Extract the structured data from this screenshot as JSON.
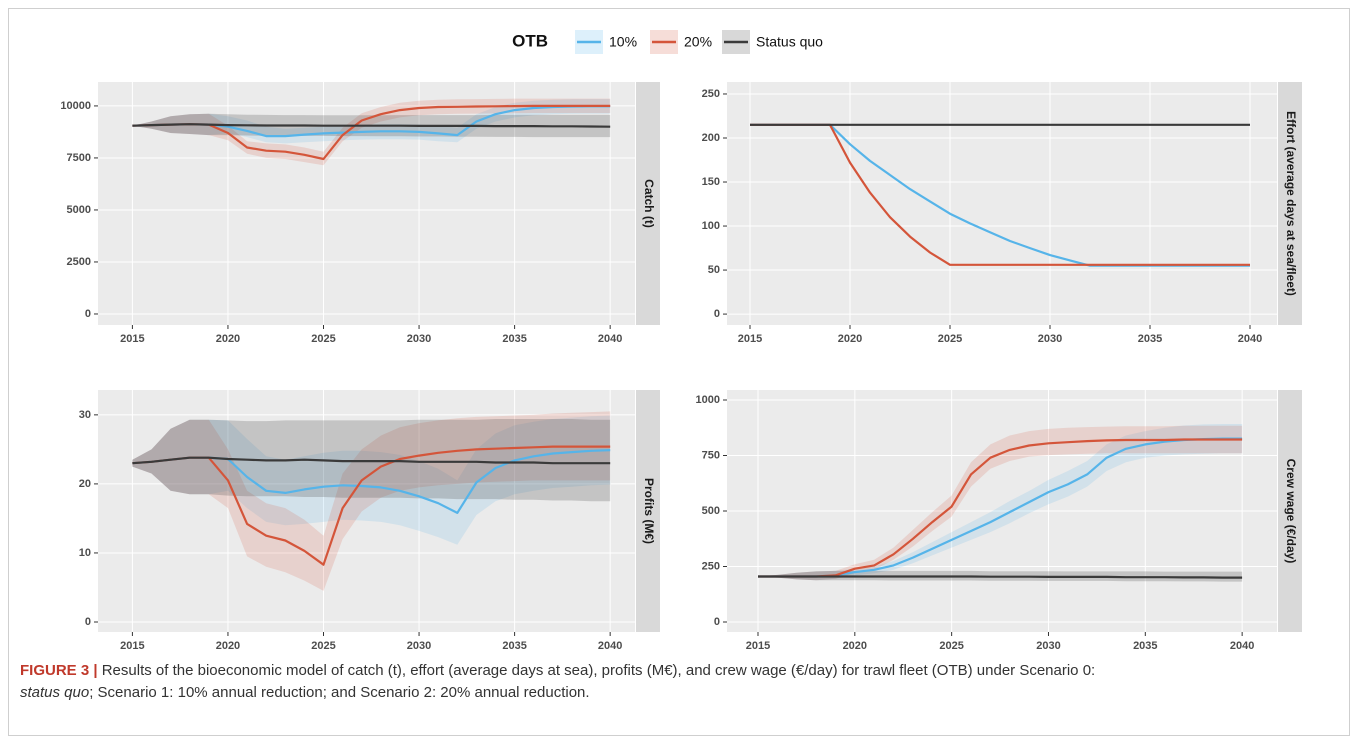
{
  "legend": {
    "title": "OTB",
    "entries": [
      {
        "name": "10%",
        "color": "#56b4e9"
      },
      {
        "name": "20%",
        "color": "#d4553a"
      },
      {
        "name": "Status quo",
        "color": "#3a3a3a"
      }
    ]
  },
  "chart_data": [
    {
      "type": "line",
      "strip": "Catch (t)",
      "x": [
        2015,
        2016,
        2017,
        2018,
        2019,
        2020,
        2021,
        2022,
        2023,
        2024,
        2025,
        2026,
        2027,
        2028,
        2029,
        2030,
        2031,
        2032,
        2033,
        2034,
        2035,
        2036,
        2037,
        2038,
        2039,
        2040
      ],
      "xlim": [
        2013.2,
        2041.3
      ],
      "xticks": [
        2015,
        2020,
        2025,
        2030,
        2035,
        2040
      ],
      "ylim": [
        -530,
        11150
      ],
      "yticks": [
        0,
        2500,
        5000,
        7500,
        10000
      ],
      "grid": true,
      "series": [
        {
          "values": [
            9050,
            9080,
            9100,
            9120,
            9100,
            9000,
            8800,
            8550,
            8550,
            8620,
            8680,
            8720,
            8750,
            8780,
            8780,
            8750,
            8680,
            8600,
            9250,
            9600,
            9800,
            9900,
            9950,
            9970,
            9980,
            9980
          ],
          "lower": [
            9050,
            8900,
            8700,
            8650,
            8600,
            8700,
            8500,
            8250,
            8200,
            8250,
            8300,
            8350,
            8380,
            8400,
            8400,
            8380,
            8300,
            8250,
            8900,
            9250,
            9450,
            9550,
            9600,
            9620,
            9630,
            9630
          ],
          "upper": [
            9050,
            9250,
            9500,
            9600,
            9620,
            9500,
            9300,
            9000,
            8900,
            8950,
            9000,
            9050,
            9080,
            9120,
            9120,
            9100,
            9050,
            8950,
            9600,
            9950,
            10150,
            10250,
            10300,
            10320,
            10330,
            10330
          ]
        },
        {
          "values": [
            9050,
            9080,
            9100,
            9120,
            9100,
            8700,
            8000,
            7850,
            7800,
            7650,
            7450,
            8600,
            9300,
            9600,
            9800,
            9900,
            9950,
            9960,
            9970,
            9980,
            9990,
            10000,
            10000,
            10000,
            10000,
            10000
          ],
          "lower": [
            9050,
            8900,
            8700,
            8650,
            8600,
            8350,
            7700,
            7500,
            7450,
            7300,
            7150,
            8300,
            8950,
            9250,
            9450,
            9550,
            9600,
            9620,
            9630,
            9640,
            9650,
            9660,
            9660,
            9660,
            9660,
            9660
          ],
          "upper": [
            9050,
            9250,
            9500,
            9600,
            9620,
            9050,
            8300,
            8200,
            8150,
            8000,
            7800,
            8950,
            9650,
            9950,
            10150,
            10250,
            10300,
            10320,
            10330,
            10340,
            10350,
            10350,
            10350,
            10350,
            10350,
            10350
          ]
        },
        {
          "values": [
            9050,
            9080,
            9100,
            9120,
            9100,
            9080,
            9070,
            9060,
            9060,
            9060,
            9050,
            9050,
            9050,
            9050,
            9050,
            9040,
            9040,
            9040,
            9040,
            9030,
            9030,
            9030,
            9020,
            9020,
            9010,
            9000
          ],
          "lower": [
            9050,
            8900,
            8700,
            8650,
            8600,
            8600,
            8580,
            8570,
            8570,
            8560,
            8560,
            8550,
            8550,
            8540,
            8540,
            8530,
            8530,
            8520,
            8520,
            8510,
            8510,
            8500,
            8500,
            8500,
            8500,
            8500
          ],
          "upper": [
            9050,
            9250,
            9500,
            9600,
            9620,
            9600,
            9580,
            9570,
            9560,
            9560,
            9550,
            9550,
            9550,
            9550,
            9560,
            9560,
            9560,
            9560,
            9560,
            9570,
            9570,
            9570,
            9570,
            9570,
            9570,
            9570
          ]
        }
      ]
    },
    {
      "type": "line",
      "strip": "Effort (average days at sea/fleet)",
      "x": [
        2015,
        2016,
        2017,
        2018,
        2019,
        2020,
        2021,
        2022,
        2023,
        2024,
        2025,
        2026,
        2027,
        2028,
        2029,
        2030,
        2031,
        2032,
        2033,
        2034,
        2035,
        2036,
        2037,
        2038,
        2039,
        2040
      ],
      "xlim": [
        2013.85,
        2041.35
      ],
      "xticks": [
        2015,
        2020,
        2025,
        2030,
        2035,
        2040
      ],
      "ylim": [
        -12.4,
        263.6
      ],
      "yticks": [
        0,
        50,
        100,
        150,
        200,
        250
      ],
      "grid": true,
      "series": [
        {
          "values": [
            215,
            215,
            215,
            215,
            215,
            193,
            174,
            158,
            142,
            128,
            114,
            103,
            93,
            83,
            75,
            67,
            61,
            55,
            55,
            55,
            55,
            55,
            55,
            55,
            55,
            55
          ]
        },
        {
          "values": [
            215,
            215,
            215,
            215,
            215,
            172,
            138,
            110,
            88,
            70,
            56,
            56,
            56,
            56,
            56,
            56,
            56,
            56,
            56,
            56,
            56,
            56,
            56,
            56,
            56,
            56
          ]
        },
        {
          "values": [
            215,
            215,
            215,
            215,
            215,
            215,
            215,
            215,
            215,
            215,
            215,
            215,
            215,
            215,
            215,
            215,
            215,
            215,
            215,
            215,
            215,
            215,
            215,
            215,
            215,
            215
          ]
        }
      ]
    },
    {
      "type": "line",
      "strip": "Profits (M€)",
      "x": [
        2015,
        2016,
        2017,
        2018,
        2019,
        2020,
        2021,
        2022,
        2023,
        2024,
        2025,
        2026,
        2027,
        2028,
        2029,
        2030,
        2031,
        2032,
        2033,
        2034,
        2035,
        2036,
        2037,
        2038,
        2039,
        2040
      ],
      "xlim": [
        2013.2,
        2041.3
      ],
      "xticks": [
        2015,
        2020,
        2025,
        2030,
        2035,
        2040
      ],
      "ylim": [
        -1.45,
        33.6
      ],
      "yticks": [
        0,
        10,
        20,
        30
      ],
      "grid": true,
      "series": [
        {
          "values": [
            23,
            23.2,
            23.5,
            23.8,
            23.8,
            23.6,
            21,
            19,
            18.7,
            19.2,
            19.6,
            19.8,
            19.7,
            19.5,
            19,
            18.2,
            17.2,
            15.8,
            20.2,
            22.3,
            23.4,
            24,
            24.4,
            24.6,
            24.8,
            24.9
          ],
          "lower": [
            22.5,
            21.5,
            19,
            18.5,
            18.5,
            19,
            16.5,
            14.5,
            14,
            14.2,
            14.5,
            14.8,
            14.7,
            14.5,
            14,
            13.2,
            12.3,
            11.2,
            15.5,
            17.5,
            18.5,
            19,
            19.4,
            19.6,
            19.8,
            19.9
          ],
          "upper": [
            23.5,
            25,
            28,
            29.3,
            29.3,
            29.2,
            26.5,
            24,
            23.5,
            24,
            24.5,
            24.8,
            24.8,
            24.6,
            24.2,
            23.3,
            22.2,
            20.5,
            25,
            27.3,
            28.5,
            29,
            29.4,
            29.6,
            29.8,
            29.9
          ]
        },
        {
          "values": [
            23,
            23.2,
            23.5,
            23.8,
            23.8,
            20.5,
            14.2,
            12.5,
            11.8,
            10.3,
            8.3,
            16.5,
            20.5,
            22.5,
            23.6,
            24.1,
            24.5,
            24.8,
            25,
            25.1,
            25.2,
            25.3,
            25.4,
            25.4,
            25.4,
            25.4
          ],
          "lower": [
            22.5,
            21.5,
            19,
            18.5,
            18.5,
            16.5,
            9.5,
            8,
            7.2,
            6,
            4.5,
            12,
            16,
            18,
            19,
            19.5,
            19.8,
            20,
            20.2,
            20.3,
            20.4,
            20.5,
            20.5,
            20.5,
            20.5,
            20.5
          ],
          "upper": [
            23.5,
            25,
            28,
            29.3,
            29.3,
            25,
            19,
            17.2,
            16.5,
            14.8,
            12.5,
            21.5,
            25,
            27,
            28.2,
            28.8,
            29.2,
            29.5,
            29.7,
            29.8,
            29.9,
            30,
            30.2,
            30.3,
            30.4,
            30.5
          ]
        },
        {
          "values": [
            23,
            23.2,
            23.5,
            23.8,
            23.8,
            23.6,
            23.5,
            23.4,
            23.4,
            23.5,
            23.4,
            23.3,
            23.3,
            23.3,
            23.3,
            23.2,
            23.2,
            23.2,
            23.2,
            23.1,
            23.1,
            23.1,
            23,
            23,
            23,
            23
          ],
          "lower": [
            22.5,
            21.5,
            19,
            18.5,
            18.5,
            18.3,
            18.2,
            18.2,
            18.2,
            18.1,
            18.1,
            18,
            18,
            18,
            18,
            17.9,
            17.9,
            17.8,
            17.8,
            17.8,
            17.7,
            17.7,
            17.6,
            17.6,
            17.5,
            17.5
          ],
          "upper": [
            23.5,
            25,
            28,
            29.3,
            29.3,
            29.2,
            29.1,
            29.1,
            29.2,
            29.2,
            29.2,
            29.2,
            29.2,
            29.2,
            29.2,
            29.3,
            29.3,
            29.3,
            29.3,
            29.4,
            29.4,
            29.4,
            29.4,
            29.4,
            29.3,
            29.3
          ]
        }
      ]
    },
    {
      "type": "line",
      "strip": "Crew wage (€/day)",
      "x": [
        2015,
        2016,
        2017,
        2018,
        2019,
        2020,
        2021,
        2022,
        2023,
        2024,
        2025,
        2026,
        2027,
        2028,
        2029,
        2030,
        2031,
        2032,
        2033,
        2034,
        2035,
        2036,
        2037,
        2038,
        2039,
        2040
      ],
      "xlim": [
        2013.4,
        2041.8
      ],
      "xticks": [
        2015,
        2020,
        2025,
        2030,
        2035,
        2040
      ],
      "ylim": [
        -45,
        1045
      ],
      "yticks": [
        0,
        250,
        500,
        750,
        1000
      ],
      "grid": true,
      "series": [
        {
          "values": [
            205,
            205,
            205,
            205,
            210,
            225,
            235,
            255,
            290,
            330,
            370,
            410,
            450,
            495,
            540,
            585,
            620,
            665,
            740,
            780,
            800,
            812,
            820,
            824,
            826,
            826
          ],
          "lower": [
            205,
            200,
            192,
            188,
            195,
            210,
            220,
            235,
            265,
            300,
            335,
            370,
            405,
            445,
            490,
            530,
            565,
            610,
            680,
            720,
            740,
            750,
            755,
            758,
            760,
            760
          ],
          "upper": [
            205,
            212,
            222,
            228,
            230,
            240,
            250,
            275,
            315,
            360,
            405,
            450,
            495,
            545,
            590,
            640,
            680,
            725,
            800,
            840,
            860,
            875,
            885,
            890,
            892,
            892
          ]
        },
        {
          "values": [
            205,
            205,
            205,
            205,
            210,
            240,
            255,
            305,
            375,
            450,
            520,
            665,
            740,
            775,
            795,
            805,
            810,
            815,
            818,
            820,
            820,
            820,
            822,
            822,
            822,
            822
          ],
          "lower": [
            205,
            200,
            192,
            188,
            195,
            220,
            235,
            280,
            340,
            410,
            475,
            610,
            690,
            725,
            745,
            752,
            755,
            758,
            760,
            760,
            760,
            760,
            760,
            760,
            760,
            760
          ],
          "upper": [
            205,
            212,
            222,
            228,
            230,
            260,
            280,
            335,
            415,
            495,
            570,
            720,
            800,
            840,
            860,
            870,
            875,
            878,
            880,
            882,
            882,
            882,
            884,
            884,
            884,
            884
          ]
        },
        {
          "values": [
            205,
            205,
            205,
            205,
            205,
            205,
            205,
            205,
            205,
            205,
            205,
            205,
            204,
            204,
            204,
            203,
            203,
            203,
            203,
            202,
            202,
            202,
            201,
            201,
            200,
            200
          ],
          "lower": [
            205,
            200,
            192,
            188,
            188,
            188,
            188,
            187,
            187,
            187,
            187,
            187,
            186,
            186,
            186,
            185,
            185,
            185,
            185,
            184,
            184,
            184,
            183,
            183,
            182,
            182
          ],
          "upper": [
            205,
            212,
            222,
            228,
            230,
            230,
            230,
            230,
            230,
            230,
            230,
            230,
            229,
            229,
            229,
            229,
            228,
            228,
            228,
            228,
            228,
            227,
            227,
            227,
            227,
            227
          ]
        }
      ]
    }
  ],
  "caption": {
    "label": "FIGURE 3 |",
    "text": "Results of the bioeconomic model of catch (t), effort (average days at sea), profits (M€), and crew wage (€/day) for trawl fleet (OTB) under Scenario 0:",
    "emphasis": "status quo",
    "text_end": "; Scenario 1: 10% annual reduction; and Scenario 2: 20% annual reduction."
  }
}
